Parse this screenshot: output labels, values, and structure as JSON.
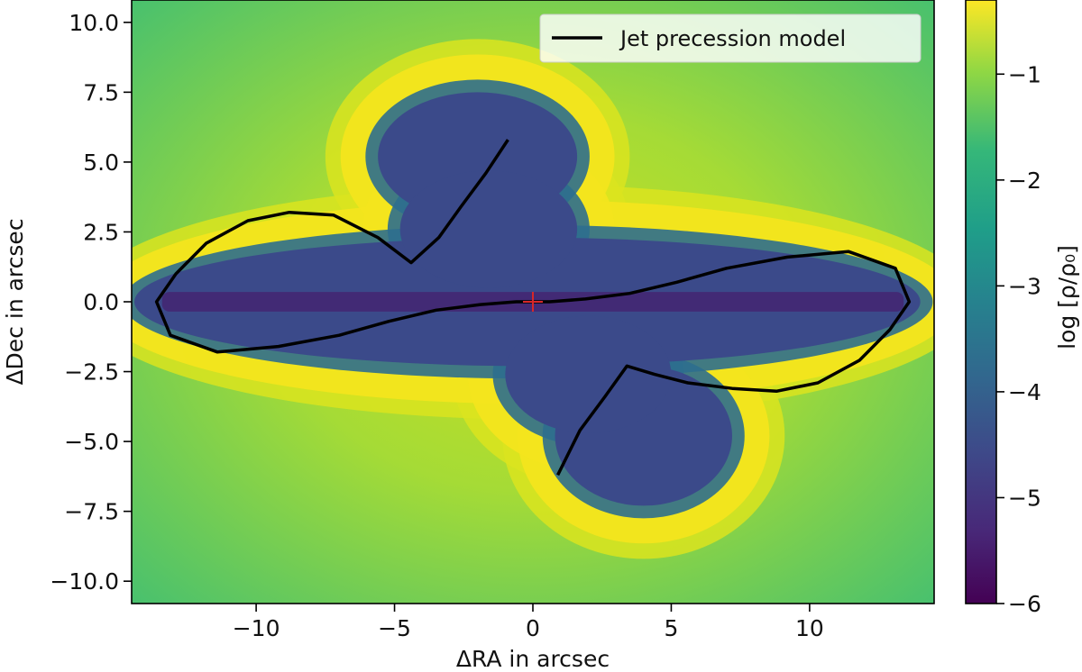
{
  "chart_data": {
    "type": "heatmap",
    "title": "",
    "xlabel": "ΔRA in arcsec",
    "ylabel": "ΔDec in arcsec",
    "xlim": [
      -14.5,
      14.5
    ],
    "ylim": [
      -10.8,
      10.8
    ],
    "x_ticks": [
      -10,
      -5,
      0,
      5,
      10
    ],
    "x_tick_labels": [
      "−10",
      "−5",
      "0",
      "5",
      "10"
    ],
    "y_ticks": [
      10,
      7.5,
      5,
      2.5,
      0,
      -2.5,
      -5,
      -7.5,
      -10
    ],
    "y_tick_labels": [
      "10.0",
      "7.5",
      "5.0",
      "2.5",
      "0.0",
      "−2.5",
      "−5.0",
      "−7.5",
      "−10.0"
    ],
    "colorbar": {
      "label": "log [ρ/ρ₀]",
      "colormap": "viridis",
      "range": [
        -6,
        -0.3
      ],
      "ticks": [
        -1,
        -2,
        -3,
        -4,
        -5,
        -6
      ],
      "tick_labels": [
        "−1",
        "−2",
        "−3",
        "−4",
        "−5",
        "−6"
      ]
    },
    "legend": {
      "placement": "top-right",
      "entries": [
        {
          "label": "Jet precession model",
          "color": "#000000"
        }
      ]
    },
    "series": [
      {
        "name": "Jet precession model",
        "color": "#000000",
        "x": [
          -0.9,
          -1.7,
          -2.6,
          -3.4,
          -4.4,
          -5.6,
          -7.2,
          -8.8,
          -10.3,
          -11.8,
          -12.9,
          -13.6,
          -13.1,
          -11.4,
          -9.2,
          -7,
          -5.2,
          -3.5,
          -1.9,
          -0.6,
          0,
          0.6,
          1.9,
          3.5,
          5.2,
          7,
          9.2,
          11.4,
          13.1,
          13.6,
          12.9,
          11.8,
          10.3,
          8.8,
          7.2,
          5.6,
          4.4,
          3.4,
          2.6,
          1.7,
          0.9
        ],
        "y": [
          5.8,
          4.6,
          3.4,
          2.3,
          1.4,
          2.3,
          3.1,
          3.2,
          2.9,
          2.1,
          1,
          0,
          -1.2,
          -1.8,
          -1.6,
          -1.2,
          -0.7,
          -0.3,
          -0.1,
          0,
          0,
          0,
          0.1,
          0.3,
          0.7,
          1.2,
          1.6,
          1.8,
          1.2,
          0,
          -1,
          -2.1,
          -2.9,
          -3.2,
          -3.1,
          -2.9,
          -2.6,
          -2.3,
          -3.4,
          -4.6,
          -6.2
        ]
      }
    ],
    "markers": [
      {
        "x": 0,
        "y": 0,
        "symbol": "+",
        "color": "#d62728"
      }
    ]
  }
}
